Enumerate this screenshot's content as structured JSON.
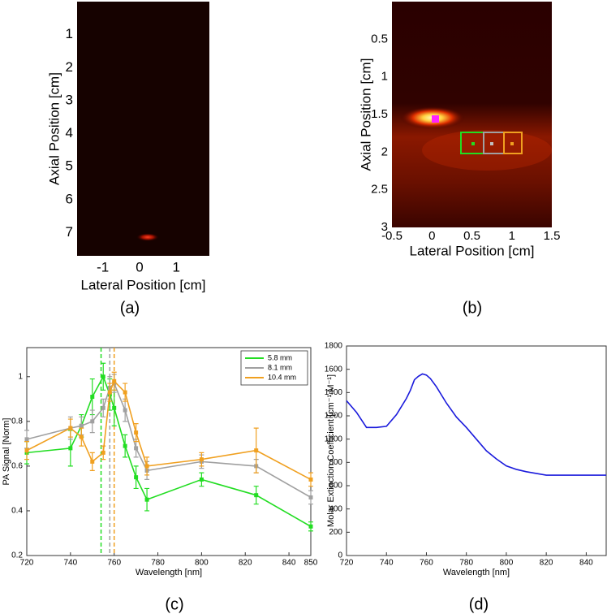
{
  "chart_data": [
    {
      "type": "image",
      "caption": "(a)",
      "xlabel": "Lateral Position [cm]",
      "ylabel": "Axial Position [cm]",
      "xlim": [
        -1.7,
        1.9
      ],
      "ylim": [
        7.7,
        0
      ],
      "xticks": [
        -1,
        0,
        1
      ],
      "yticks": [
        1,
        2,
        3,
        4,
        5,
        6,
        7
      ]
    },
    {
      "type": "image",
      "caption": "(b)",
      "xlabel": "Lateral Position [cm]",
      "ylabel": "Axial Position [cm]",
      "xlim": [
        -0.5,
        1.5
      ],
      "ylim": [
        3,
        0
      ],
      "xticks": [
        -0.5,
        0,
        0.5,
        1,
        1.5
      ],
      "yticks": [
        0.5,
        1,
        1.5,
        2,
        2.5,
        3
      ]
    },
    {
      "type": "line",
      "caption": "(c)",
      "xlabel": "Wavelength [nm]",
      "ylabel": "PA Signal [Norm]",
      "xlim": [
        720,
        850
      ],
      "ylim": [
        0.2,
        1.13
      ],
      "xticks": [
        720,
        740,
        760,
        780,
        800,
        820,
        840,
        850
      ],
      "yticks": [
        0.2,
        0.4,
        0.6,
        0.8,
        1
      ],
      "legend": "upper right",
      "x": [
        720,
        740,
        745,
        750,
        755,
        758,
        760,
        765,
        770,
        775,
        800,
        825,
        850
      ],
      "series": [
        {
          "name": "5.8 mm",
          "color": "#22dd22",
          "values": [
            0.66,
            0.68,
            0.78,
            0.91,
            1.0,
            0.92,
            0.86,
            0.69,
            0.55,
            0.45,
            0.54,
            0.47,
            0.33
          ],
          "errors": [
            0.05,
            0.08,
            0.05,
            0.08,
            0.06,
            0.07,
            0.08,
            0.05,
            0.05,
            0.05,
            0.03,
            0.04,
            0.02
          ]
        },
        {
          "name": "8.1 mm",
          "color": "#a0a0a0",
          "values": [
            0.72,
            0.77,
            0.78,
            0.8,
            0.86,
            0.95,
            0.97,
            0.85,
            0.68,
            0.58,
            0.62,
            0.6,
            0.46
          ],
          "errors": [
            0.04,
            0.05,
            0.04,
            0.05,
            0.04,
            0.05,
            0.04,
            0.05,
            0.04,
            0.04,
            0.03,
            0.03,
            0.03
          ]
        },
        {
          "name": "10.4 mm",
          "color": "#f0a020",
          "values": [
            0.67,
            0.77,
            0.73,
            0.62,
            0.66,
            0.93,
            0.98,
            0.93,
            0.75,
            0.6,
            0.63,
            0.67,
            0.54
          ],
          "errors": [
            0.04,
            0.04,
            0.04,
            0.04,
            0.03,
            0.04,
            0.04,
            0.04,
            0.04,
            0.04,
            0.03,
            0.1,
            0.03
          ]
        }
      ],
      "vlines": [
        {
          "value": 754,
          "color": "#22dd22"
        },
        {
          "value": 758,
          "color": "#a0a0a0"
        },
        {
          "value": 760,
          "color": "#f0a020"
        }
      ]
    },
    {
      "type": "line",
      "caption": "(d)",
      "xlabel": "Wavelength [nm]",
      "ylabel": "Molar Extinction Coefficient [cm⁻¹ M⁻¹]",
      "xlim": [
        720,
        850
      ],
      "ylim": [
        0,
        1800
      ],
      "xticks": [
        720,
        740,
        760,
        780,
        800,
        820,
        840
      ],
      "yticks": [
        0,
        200,
        400,
        600,
        800,
        1000,
        1200,
        1400,
        1600,
        1800
      ],
      "x": [
        720,
        725,
        730,
        735,
        740,
        745,
        750,
        752,
        754,
        756,
        758,
        760,
        762,
        765,
        770,
        775,
        780,
        785,
        790,
        795,
        800,
        805,
        810,
        820,
        830,
        840,
        850
      ],
      "series": [
        {
          "color": "#1a1adc",
          "values": [
            1330,
            1230,
            1100,
            1100,
            1110,
            1210,
            1350,
            1420,
            1510,
            1540,
            1560,
            1550,
            1520,
            1450,
            1310,
            1190,
            1100,
            1000,
            900,
            830,
            770,
            740,
            720,
            690,
            690,
            690,
            690
          ]
        }
      ]
    }
  ]
}
